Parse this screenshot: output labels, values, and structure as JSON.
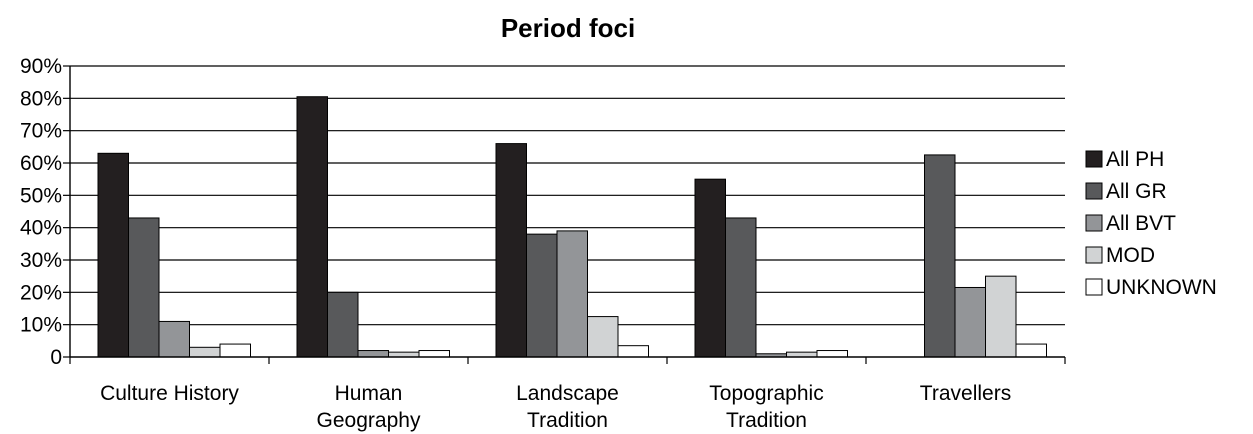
{
  "chart_data": {
    "type": "bar",
    "title": "Period foci",
    "xlabel": "",
    "ylabel": "",
    "ylim": [
      0,
      0.9
    ],
    "ytick_labels": [
      "0",
      "10%",
      "20%",
      "30%",
      "40%",
      "50%",
      "60%",
      "70%",
      "80%",
      "90%"
    ],
    "grid": true,
    "legend_position": "right",
    "categories": [
      [
        "Culture History"
      ],
      [
        "Human",
        "Geography"
      ],
      [
        "Landscape",
        "Tradition"
      ],
      [
        "Topographic",
        "Tradition"
      ],
      [
        "Travellers"
      ]
    ],
    "series": [
      {
        "name": "All PH",
        "color": "#231f20",
        "values": [
          0.63,
          0.805,
          0.66,
          0.55,
          0.0
        ]
      },
      {
        "name": "All GR",
        "color": "#58595b",
        "values": [
          0.43,
          0.2,
          0.38,
          0.43,
          0.625
        ]
      },
      {
        "name": "All BVT",
        "color": "#939598",
        "values": [
          0.11,
          0.02,
          0.39,
          0.01,
          0.215
        ]
      },
      {
        "name": "MOD",
        "color": "#d1d3d4",
        "values": [
          0.03,
          0.015,
          0.125,
          0.015,
          0.25
        ]
      },
      {
        "name": "UNKNOWN",
        "color": "#ffffff",
        "values": [
          0.04,
          0.02,
          0.035,
          0.02,
          0.04
        ]
      }
    ]
  }
}
